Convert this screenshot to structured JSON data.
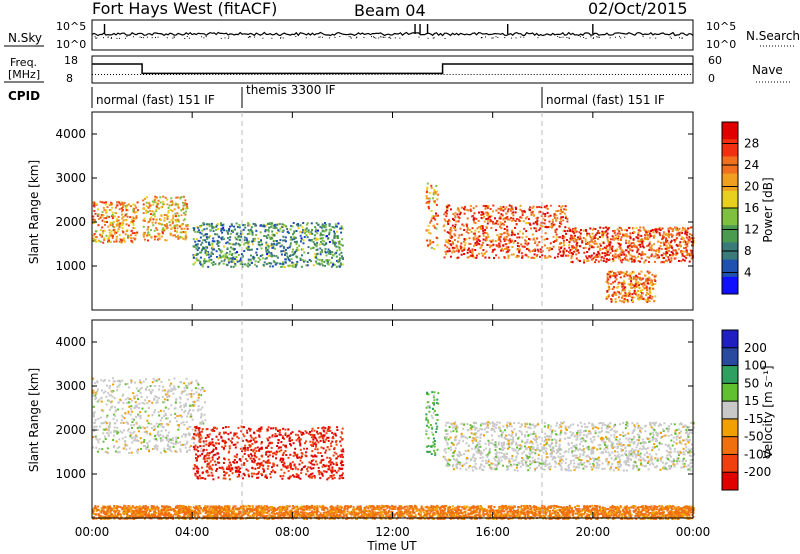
{
  "header": {
    "station": "Fort Hays West (fitACF)",
    "beam": "Beam 04",
    "date": "02/Oct/2015"
  },
  "top_panel": {
    "left_label": "N.Sky",
    "right_label": "N.Search",
    "left_ticks": [
      "10^5",
      "10^0"
    ],
    "right_ticks": [
      "10^5",
      "10^0"
    ]
  },
  "freq_panel": {
    "left_label_1": "Freq.",
    "left_label_2": "[MHz]",
    "right_label": "Nave",
    "left_ticks": [
      "18",
      "8"
    ],
    "right_ticks": [
      "60",
      "0"
    ],
    "freq_step_hours": [
      2.0,
      14.0
    ],
    "freq_levels_mhz": [
      15.8,
      10.6
    ]
  },
  "cpid": {
    "label": "CPID",
    "segments": [
      "normal (fast) 151 IF",
      "themis 3300 IF",
      "normal (fast) 151 IF"
    ],
    "boundaries_hours": [
      6.0,
      18.0
    ]
  },
  "xaxis": {
    "label": "Time UT",
    "ticks": [
      "00:00",
      "04:00",
      "08:00",
      "12:00",
      "16:00",
      "20:00",
      "00:00"
    ],
    "range_hours": [
      0,
      24
    ]
  },
  "power_panel": {
    "ylabel": "Slant Range [km]",
    "yticks": [
      "1000",
      "2000",
      "3000",
      "4000"
    ],
    "colorbar_label": "Power [dB]",
    "colorbar_ticks": [
      "4",
      "8",
      "12",
      "16",
      "20",
      "24",
      "28"
    ],
    "colors": [
      "#1010ff",
      "#2050b0",
      "#3a7a78",
      "#4a9a50",
      "#80c040",
      "#e8d020",
      "#f0a020",
      "#f07020",
      "#f03010",
      "#e00000"
    ]
  },
  "velocity_panel": {
    "ylabel": "Slant Range [km]",
    "yticks": [
      "1000",
      "2000",
      "3000",
      "4000"
    ],
    "colorbar_label": "Velocity [m s⁻¹]",
    "colorbar_ticks": [
      "200",
      "100",
      "50",
      "15",
      "-15",
      "-50",
      "-100",
      "-200"
    ],
    "colors": [
      "#2020c0",
      "#2a4aa0",
      "#30a060",
      "#60c030",
      "#c8c8c8",
      "#f0a000",
      "#f07010",
      "#f04010",
      "#e00000"
    ]
  },
  "chart_data": {
    "type": "heatmap",
    "x_units": "hours UT",
    "y_units": "slant range km",
    "xlim": [
      0,
      24
    ],
    "ylim": [
      0,
      4500
    ],
    "power_echo_bands": [
      {
        "t0": 0.0,
        "t1": 1.8,
        "r0": 1550,
        "r1": 2500,
        "value_db": 22
      },
      {
        "t0": 2.0,
        "t1": 3.8,
        "r0": 1600,
        "r1": 2600,
        "value_db": 20
      },
      {
        "t0": 4.0,
        "t1": 10.0,
        "r0": 1000,
        "r1": 2000,
        "value_db": 10
      },
      {
        "t0": 13.3,
        "t1": 13.8,
        "r0": 1400,
        "r1": 2900,
        "value_db": 22
      },
      {
        "t0": 14.0,
        "t1": 19.0,
        "r0": 1200,
        "r1": 2400,
        "value_db": 26
      },
      {
        "t0": 19.0,
        "t1": 24.0,
        "r0": 1100,
        "r1": 1900,
        "value_db": 26
      },
      {
        "t0": 20.5,
        "t1": 22.5,
        "r0": 200,
        "r1": 900,
        "value_db": 24
      }
    ],
    "velocity_echo_bands": [
      {
        "t0": 0.0,
        "t1": 4.5,
        "r0": 1500,
        "r1": 3200,
        "value_ms": 0
      },
      {
        "t0": 4.0,
        "t1": 10.0,
        "r0": 900,
        "r1": 2100,
        "value_ms": -150
      },
      {
        "t0": 13.3,
        "t1": 13.8,
        "r0": 1400,
        "r1": 2900,
        "value_ms": 30
      },
      {
        "t0": 14.0,
        "t1": 24.0,
        "r0": 1100,
        "r1": 2200,
        "value_ms": 0
      },
      {
        "t0": 0.0,
        "t1": 24.0,
        "r0": 0,
        "r1": 300,
        "value_ms": -40
      }
    ]
  }
}
